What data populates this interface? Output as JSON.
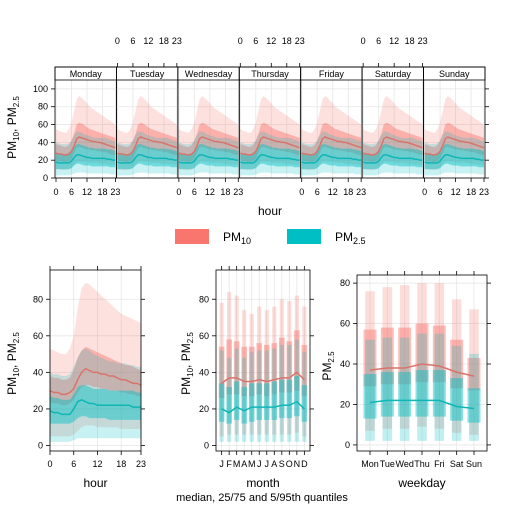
{
  "caption": "median, 25/75 and 5/95th quantiles",
  "legend": {
    "items": [
      {
        "label": "PM",
        "sub": "10",
        "color": "#f8766d"
      },
      {
        "label": "PM",
        "sub": "2.5",
        "color": "#00bfc4"
      }
    ]
  },
  "colors": {
    "pm10": "#f8766d",
    "pm25": "#00bfc4",
    "median_pm10": "#d9746b",
    "median_pm25": "#0fb6b6",
    "grid": "#e6e6e6"
  },
  "chart_data": [
    {
      "type": "line",
      "title": "",
      "xlabel": "hour",
      "ylabel": {
        "text": "PM",
        "parts": [
          {
            "t": "PM"
          },
          {
            "t": "10",
            "sub": true
          },
          {
            "t": ", PM"
          },
          {
            "t": "2.5",
            "sub": true
          }
        ]
      },
      "panels": [
        "Monday",
        "Tuesday",
        "Wednesday",
        "Thursday",
        "Friday",
        "Saturday",
        "Sunday"
      ],
      "x_ticks": [
        0,
        6,
        12,
        18,
        23
      ],
      "ylim": [
        0,
        110
      ],
      "y_ticks": [
        0,
        20,
        40,
        60,
        80,
        100
      ],
      "grid": true,
      "series": [
        {
          "name": "PM10",
          "median": [
            28,
            27,
            27,
            26,
            26,
            27,
            30,
            36,
            44,
            46,
            45,
            44,
            43,
            42,
            41,
            41,
            40,
            40,
            39,
            38,
            37,
            36,
            35,
            34
          ],
          "p25": [
            20,
            19,
            19,
            18,
            18,
            19,
            22,
            28,
            34,
            35,
            34,
            33,
            32,
            32,
            31,
            31,
            30,
            30,
            29,
            29,
            28,
            27,
            26,
            26
          ],
          "p75": [
            38,
            37,
            36,
            35,
            35,
            37,
            42,
            50,
            60,
            62,
            61,
            59,
            57,
            55,
            54,
            53,
            52,
            51,
            50,
            49,
            48,
            47,
            46,
            45
          ],
          "p05": [
            10,
            10,
            9,
            9,
            9,
            10,
            12,
            15,
            18,
            19,
            18,
            18,
            18,
            17,
            17,
            17,
            17,
            16,
            16,
            16,
            15,
            15,
            15,
            14
          ],
          "p95": [
            55,
            53,
            52,
            51,
            51,
            55,
            62,
            75,
            88,
            92,
            90,
            87,
            84,
            80,
            78,
            76,
            74,
            72,
            70,
            68,
            66,
            64,
            62,
            60
          ]
        },
        {
          "name": "PM2.5",
          "median": [
            18,
            17,
            17,
            17,
            17,
            17,
            19,
            23,
            26,
            26,
            25,
            24,
            23,
            23,
            22,
            22,
            22,
            22,
            22,
            22,
            21,
            21,
            20,
            20
          ],
          "p25": [
            10,
            10,
            10,
            10,
            10,
            10,
            11,
            14,
            16,
            16,
            15,
            14,
            14,
            14,
            13,
            13,
            13,
            13,
            13,
            13,
            13,
            12,
            12,
            12
          ],
          "p75": [
            28,
            27,
            27,
            26,
            26,
            27,
            30,
            35,
            38,
            38,
            37,
            36,
            35,
            34,
            34,
            33,
            33,
            33,
            33,
            33,
            32,
            32,
            31,
            30
          ],
          "p05": [
            3,
            3,
            3,
            3,
            3,
            3,
            4,
            5,
            6,
            6,
            6,
            6,
            5,
            5,
            5,
            5,
            5,
            5,
            5,
            5,
            5,
            4,
            4,
            4
          ],
          "p95": [
            40,
            39,
            38,
            38,
            38,
            39,
            42,
            48,
            52,
            52,
            51,
            49,
            48,
            47,
            46,
            45,
            45,
            45,
            45,
            45,
            44,
            43,
            42,
            41
          ]
        }
      ]
    },
    {
      "type": "line",
      "title": "",
      "xlabel": "hour",
      "ylabel": {
        "text": "PM",
        "parts": [
          {
            "t": "PM"
          },
          {
            "t": "10",
            "sub": true
          },
          {
            "t": ", PM"
          },
          {
            "t": "2.5",
            "sub": true
          }
        ]
      },
      "x_ticks": [
        0,
        6,
        12,
        18,
        23
      ],
      "ylim": [
        -3,
        96
      ],
      "y_ticks": [
        0,
        20,
        40,
        60,
        80
      ],
      "grid": true,
      "series": [
        {
          "name": "PM10",
          "median": [
            30,
            29,
            29,
            28,
            28,
            29,
            31,
            36,
            40,
            42,
            41,
            40,
            40,
            39,
            39,
            38,
            38,
            37,
            36,
            36,
            35,
            34,
            34,
            33
          ],
          "p25": [
            24,
            23,
            23,
            22,
            22,
            23,
            25,
            29,
            32,
            33,
            33,
            32,
            32,
            31,
            31,
            30,
            30,
            30,
            29,
            29,
            28,
            28,
            27,
            27
          ],
          "p75": [
            38,
            37,
            37,
            36,
            36,
            37,
            41,
            48,
            52,
            54,
            53,
            52,
            51,
            50,
            49,
            48,
            47,
            46,
            45,
            44,
            44,
            43,
            42,
            41
          ],
          "p05": [
            5,
            5,
            5,
            5,
            5,
            5,
            6,
            8,
            10,
            11,
            11,
            11,
            10,
            10,
            10,
            10,
            10,
            10,
            9,
            9,
            9,
            9,
            9,
            9
          ],
          "p95": [
            53,
            52,
            51,
            50,
            50,
            53,
            60,
            75,
            86,
            89,
            88,
            86,
            84,
            82,
            80,
            78,
            76,
            74,
            72,
            71,
            70,
            69,
            68,
            67
          ]
        },
        {
          "name": "PM2.5",
          "median": [
            19,
            18,
            18,
            17,
            17,
            17,
            20,
            24,
            25,
            24,
            23,
            23,
            22,
            22,
            22,
            22,
            22,
            22,
            22,
            22,
            22,
            21,
            21,
            21
          ],
          "p25": [
            12,
            12,
            12,
            12,
            12,
            12,
            13,
            15,
            16,
            16,
            15,
            15,
            15,
            15,
            15,
            14,
            14,
            14,
            14,
            14,
            14,
            14,
            14,
            14
          ],
          "p75": [
            27,
            26,
            26,
            25,
            25,
            25,
            28,
            32,
            33,
            33,
            32,
            31,
            31,
            31,
            31,
            30,
            30,
            30,
            30,
            30,
            30,
            30,
            29,
            29
          ],
          "p05": [
            2,
            2,
            2,
            2,
            2,
            2,
            3,
            4,
            4,
            4,
            4,
            4,
            4,
            4,
            4,
            4,
            4,
            4,
            4,
            4,
            4,
            4,
            4,
            4
          ],
          "p95": [
            40,
            39,
            39,
            38,
            38,
            39,
            43,
            48,
            52,
            53,
            52,
            50,
            49,
            48,
            47,
            46,
            46,
            45,
            45,
            45,
            44,
            44,
            43,
            43
          ]
        }
      ]
    },
    {
      "type": "bar",
      "title": "",
      "xlabel": "month",
      "ylabel": {
        "text": "PM",
        "parts": [
          {
            "t": "PM"
          },
          {
            "t": "10",
            "sub": true
          },
          {
            "t": ", PM"
          },
          {
            "t": "2.5",
            "sub": true
          }
        ]
      },
      "categories": [
        "J",
        "F",
        "M",
        "A",
        "M",
        "J",
        "J",
        "A",
        "S",
        "O",
        "N",
        "D"
      ],
      "ylim": [
        -3,
        96
      ],
      "y_ticks": [
        0,
        20,
        40,
        60,
        80
      ],
      "grid": true,
      "series": [
        {
          "name": "PM10",
          "median": [
            34,
            37,
            37,
            35,
            35,
            36,
            35,
            36,
            37,
            37,
            40,
            36
          ],
          "p25": [
            26,
            28,
            28,
            27,
            27,
            28,
            27,
            28,
            29,
            29,
            30,
            27
          ],
          "p75": [
            54,
            58,
            57,
            54,
            54,
            56,
            55,
            56,
            59,
            57,
            63,
            55
          ],
          "p05": [
            5,
            6,
            6,
            6,
            6,
            6,
            6,
            6,
            6,
            6,
            7,
            5
          ],
          "p95": [
            78,
            84,
            82,
            74,
            72,
            76,
            74,
            76,
            80,
            79,
            82,
            76
          ]
        },
        {
          "name": "PM2.5",
          "median": [
            20,
            18,
            21,
            19,
            21,
            21,
            21,
            21,
            22,
            22,
            24,
            20
          ],
          "p25": [
            13,
            12,
            14,
            12,
            13,
            14,
            14,
            14,
            15,
            15,
            16,
            13
          ],
          "p75": [
            34,
            32,
            35,
            32,
            34,
            34,
            34,
            35,
            36,
            36,
            38,
            33
          ],
          "p05": [
            2,
            2,
            2,
            2,
            2,
            2,
            2,
            2,
            2,
            2,
            2,
            2
          ],
          "p95": [
            52,
            48,
            53,
            48,
            51,
            52,
            52,
            53,
            55,
            55,
            58,
            51
          ]
        }
      ]
    },
    {
      "type": "bar",
      "title": "",
      "xlabel": "weekday",
      "ylabel": {
        "text": "PM",
        "parts": [
          {
            "t": "PM"
          },
          {
            "t": "2.5",
            "sub": true
          }
        ]
      },
      "categories": [
        "Mon",
        "Tue",
        "Wed",
        "Thu",
        "Fri",
        "Sat",
        "Sun"
      ],
      "ylim": [
        -3,
        84
      ],
      "y_ticks": [
        0,
        20,
        40,
        60,
        80
      ],
      "grid": true,
      "series": [
        {
          "name": "PM10",
          "median": [
            37,
            38,
            38,
            40,
            39,
            36,
            34
          ],
          "p25": [
            29,
            30,
            30,
            31,
            31,
            28,
            27
          ],
          "p75": [
            57,
            58,
            58,
            60,
            59,
            52,
            43
          ],
          "p05": [
            7,
            8,
            8,
            9,
            8,
            6,
            5
          ],
          "p95": [
            76,
            78,
            79,
            80,
            80,
            72,
            67
          ]
        },
        {
          "name": "PM2.5",
          "median": [
            21,
            22,
            22,
            22,
            22,
            19,
            18
          ],
          "p25": [
            13,
            14,
            14,
            14,
            14,
            12,
            11
          ],
          "p75": [
            35,
            36,
            36,
            37,
            37,
            33,
            28
          ],
          "p05": [
            2,
            2,
            2,
            2,
            2,
            2,
            2
          ],
          "p95": [
            52,
            53,
            53,
            55,
            55,
            49,
            45
          ]
        }
      ]
    }
  ]
}
